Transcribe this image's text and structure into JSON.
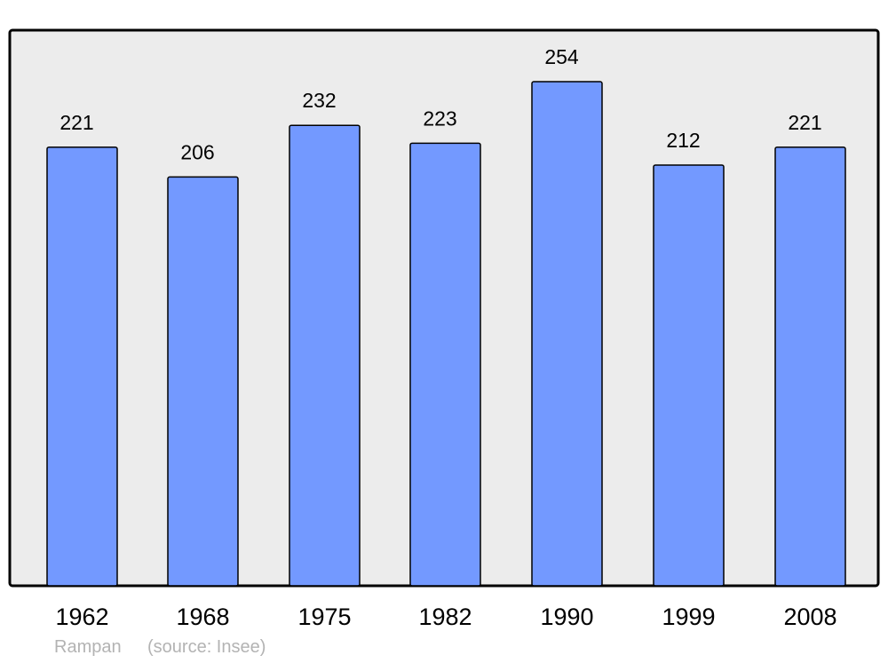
{
  "chart_data": {
    "type": "bar",
    "categories": [
      "1962",
      "1968",
      "1975",
      "1982",
      "1990",
      "1999",
      "2008"
    ],
    "values": [
      221,
      206,
      232,
      223,
      254,
      212,
      221
    ],
    "data_labels": [
      "221",
      "206",
      "232",
      "223",
      "254",
      "212",
      "221"
    ],
    "ylim": [
      0,
      280
    ],
    "grid": false,
    "colors": {
      "bar": "#7399ff",
      "background": "#ececec",
      "border": "#000000"
    }
  },
  "footer": {
    "place": "Rampan",
    "source": "(source: Insee)"
  }
}
